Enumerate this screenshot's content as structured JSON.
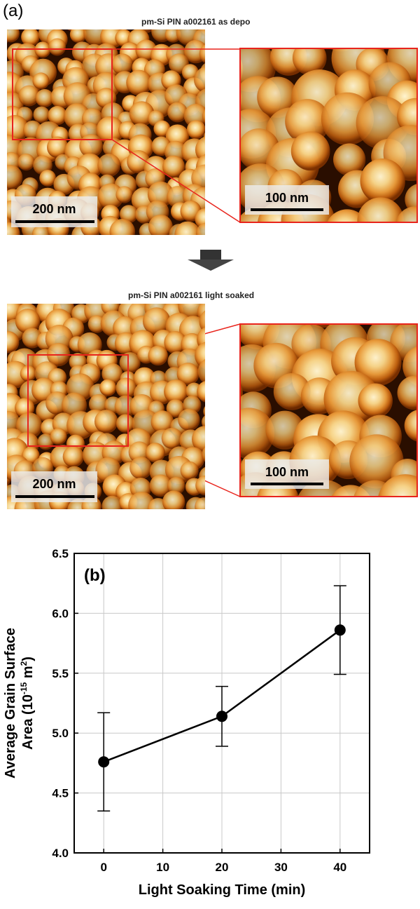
{
  "panel_a": {
    "label": "(a)",
    "top": {
      "title": "pm-Si PIN a002161 as depo",
      "main_scale_label": "200 nm",
      "zoom_scale_label": "100 nm"
    },
    "bottom": {
      "title": "pm-Si PIN a002161 light soaked",
      "main_scale_label": "200 nm",
      "zoom_scale_label": "100 nm"
    },
    "inset_color": "#e8241c",
    "afm_colormap": [
      "#2a0e00",
      "#7a2f00",
      "#c0600f",
      "#e89a3a",
      "#f7d58a",
      "#fff4d0"
    ]
  },
  "chart_data": {
    "type": "line",
    "panel_label": "(b)",
    "xlabel": "Light Soaking Time (min)",
    "ylabel_line1": "Average Grain Surface",
    "ylabel_line2_prefix": "Area (10",
    "ylabel_line2_exp1": "-15",
    "ylabel_line2_mid": " m",
    "ylabel_line2_exp2": "2",
    "ylabel_line2_suffix": ")",
    "xlim": [
      -5,
      45
    ],
    "ylim": [
      4.0,
      6.5
    ],
    "xticks": [
      0,
      10,
      20,
      30,
      40
    ],
    "yticks": [
      4.0,
      4.5,
      5.0,
      5.5,
      6.0,
      6.5
    ],
    "xtick_labels": [
      "0",
      "10",
      "20",
      "30",
      "40"
    ],
    "ytick_labels": [
      "4.0",
      "4.5",
      "5.0",
      "5.5",
      "6.0",
      "6.5"
    ],
    "grid": true,
    "series": [
      {
        "x": [
          0,
          20,
          40
        ],
        "y": [
          4.76,
          5.14,
          5.86
        ],
        "err_low": [
          4.35,
          4.89,
          5.49
        ],
        "err_high": [
          5.17,
          5.39,
          6.23
        ],
        "color": "#000000"
      }
    ]
  }
}
